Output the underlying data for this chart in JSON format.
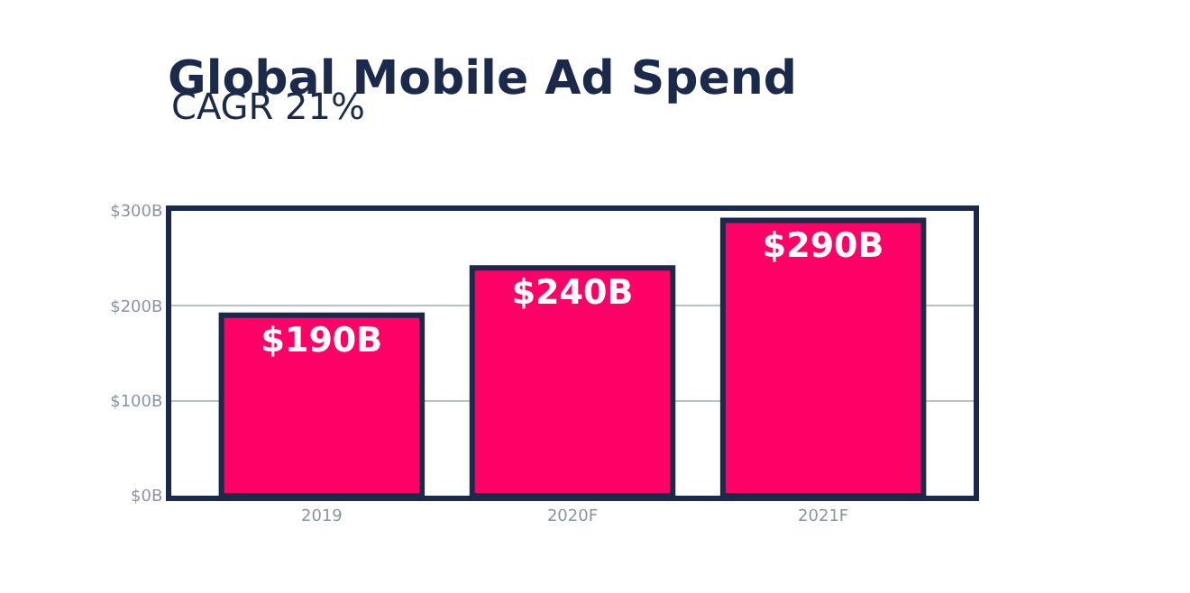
{
  "chart_data": {
    "type": "bar",
    "title": "Global Mobile Ad Spend",
    "subtitle": "CAGR 21%",
    "categories": [
      "2019",
      "2020F",
      "2021F"
    ],
    "values": [
      190,
      240,
      290
    ],
    "value_labels": [
      "$190B",
      "$240B",
      "$290B"
    ],
    "color": "#ff0066",
    "ylim": [
      0,
      300
    ],
    "yticks": [
      {
        "value": 0,
        "label": "$0B"
      },
      {
        "value": 100,
        "label": "$100B"
      },
      {
        "value": 200,
        "label": "$200B"
      },
      {
        "value": 300,
        "label": "$300B"
      }
    ],
    "grid": "y"
  }
}
